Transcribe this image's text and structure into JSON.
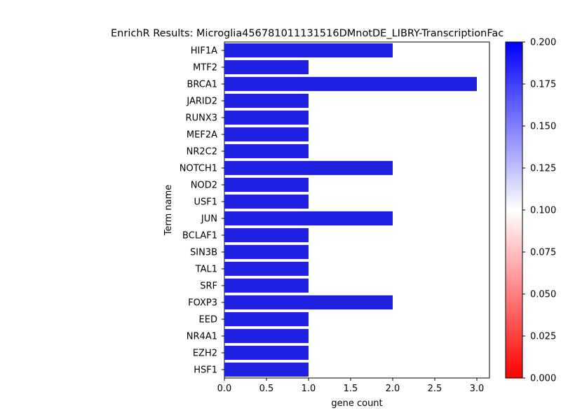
{
  "chart_data": {
    "type": "bar",
    "orientation": "horizontal",
    "title": "EnrichR Results: Microglia456781011131516DMnotDE_LIBRY-TranscriptionFac",
    "xlabel": "gene count",
    "ylabel": "Term name",
    "categories": [
      "HIF1A",
      "MTF2",
      "BRCA1",
      "JARID2",
      "RUNX3",
      "MEF2A",
      "NR2C2",
      "NOTCH1",
      "NOD2",
      "USF1",
      "JUN",
      "BCLAF1",
      "SIN3B",
      "TAL1",
      "SRF",
      "FOXP3",
      "EED",
      "NR4A1",
      "EZH2",
      "HSF1"
    ],
    "values": [
      2,
      1,
      3,
      1,
      1,
      1,
      1,
      2,
      1,
      1,
      2,
      1,
      1,
      1,
      1,
      2,
      1,
      1,
      1,
      1
    ],
    "bar_color": "#2020e0",
    "xlim": [
      0,
      3.15
    ],
    "xticks": [
      "0.0",
      "0.5",
      "1.0",
      "1.5",
      "2.0",
      "2.5",
      "3.0"
    ],
    "grid": false,
    "colorbar": {
      "range": [
        0.0,
        0.2
      ],
      "ticks": [
        "0.000",
        "0.025",
        "0.050",
        "0.075",
        "0.100",
        "0.125",
        "0.150",
        "0.175",
        "0.200"
      ],
      "colors": [
        "#ff0000",
        "#ffffff",
        "#0000ff"
      ]
    }
  }
}
